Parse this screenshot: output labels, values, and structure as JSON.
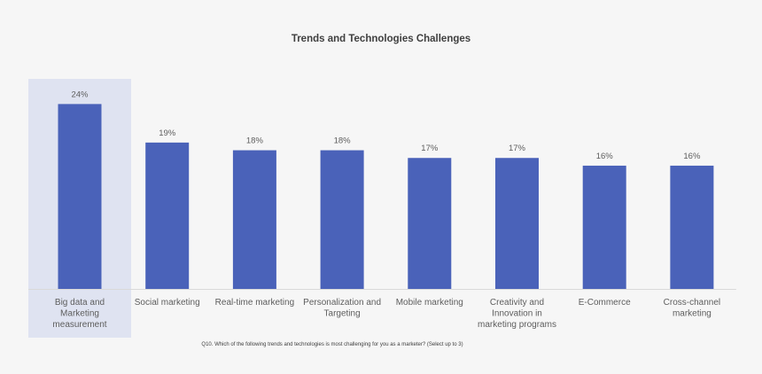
{
  "chart_data": {
    "type": "bar",
    "title": "Trends and Technologies Challenges",
    "categories": [
      "Big data and Marketing measurement",
      "Social marketing",
      "Real-time marketing",
      "Personalization and Targeting",
      "Mobile marketing",
      "Creativity and Innovation in marketing programs",
      "E-Commerce",
      "Cross-channel marketing"
    ],
    "category_lines": [
      [
        "Big data and",
        "Marketing",
        "measurement"
      ],
      [
        "Social marketing"
      ],
      [
        "Real-time marketing"
      ],
      [
        "Personalization and",
        "Targeting"
      ],
      [
        "Mobile marketing"
      ],
      [
        "Creativity and",
        "Innovation in",
        "marketing programs"
      ],
      [
        "E-Commerce"
      ],
      [
        "Cross-channel",
        "marketing"
      ]
    ],
    "values": [
      24,
      19,
      18,
      18,
      17,
      17,
      16,
      16
    ],
    "value_labels": [
      "24%",
      "19%",
      "18%",
      "18%",
      "17%",
      "17%",
      "16%",
      "16%"
    ],
    "highlighted_index": 0,
    "ylim": [
      0,
      26
    ],
    "xlabel": "",
    "ylabel": "",
    "grid": false,
    "legend": "none",
    "colors": {
      "bar": "#4a62b9",
      "highlight": "#dfe3f1",
      "label": "#5d5d5d",
      "axis": "#d9d9d9"
    }
  },
  "footnote": "Q10. Which of the following trends and technologies is most challenging for you as a marketer? (Select up to 3)"
}
